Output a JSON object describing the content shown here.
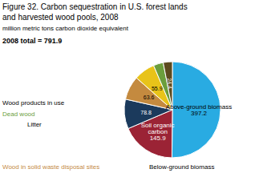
{
  "chart_data": {
    "type": "pie",
    "title": "Figure 32. Carbon sequestration in U.S. forest lands\nand harvested wood pools, 2008",
    "subtitle": "million metric tons carbon dioxide equivalent",
    "categories": [
      "Above-ground biomass",
      "Soil organic\ncarbon",
      null,
      null,
      null,
      null,
      null
    ],
    "values": [
      397.2,
      145.9,
      78.8,
      63.6,
      55.9,
      26.2,
      24.4
    ],
    "colors": [
      "#29ABE2",
      "#9B2335",
      "#1B3A5C",
      "#C48A3F",
      "#E8C319",
      "#6B9E3C",
      "#5C4A1E"
    ],
    "data_labels": true,
    "legend": false,
    "annotations": [
      {
        "text": "2008 total = 791.9",
        "color": "#000000"
      },
      {
        "text": "Wood products in use",
        "color": "#000000"
      },
      {
        "text": "Dead wood",
        "color": "#6B9E3C"
      },
      {
        "text": "Litter",
        "color": "#000000"
      },
      {
        "text": "Wood in solid waste disposal sites",
        "color": "#C48A3F"
      },
      {
        "text": "Below-ground biomass",
        "color": "#000000"
      }
    ]
  }
}
